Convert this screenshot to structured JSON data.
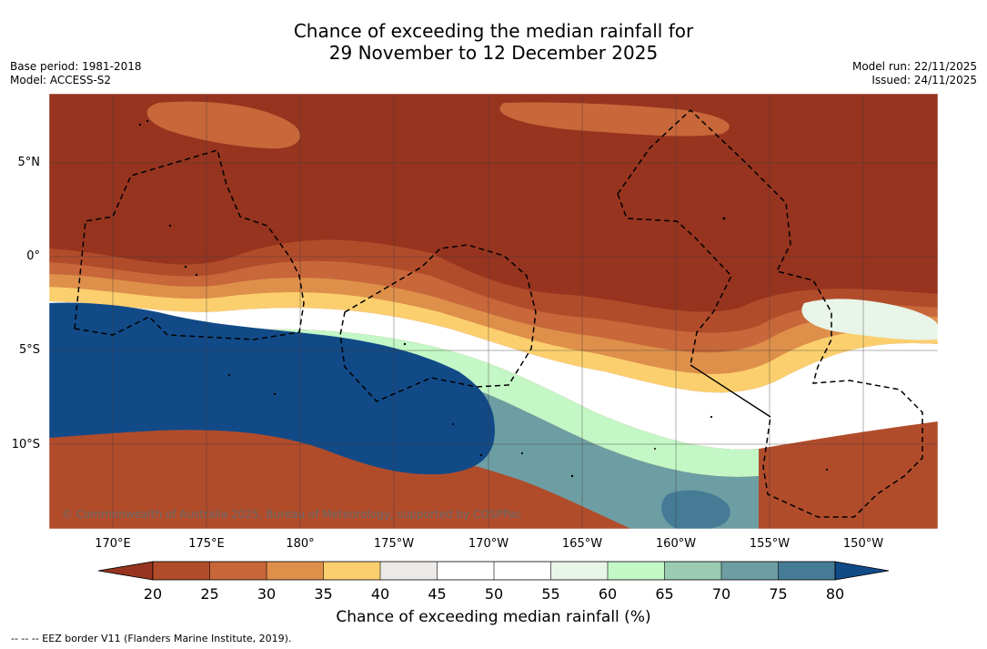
{
  "title": {
    "line1": "Chance of exceeding the median rainfall for",
    "line2": "29 November to 12 December 2025"
  },
  "meta": {
    "base_period": "Base period: 1981-2018",
    "model": "Model: ACCESS-S2",
    "model_run": "Model run: 22/11/2025",
    "issued": "Issued: 24/11/2025"
  },
  "map": {
    "lon_labels": [
      "170°E",
      "175°E",
      "180°",
      "175°W",
      "170°W",
      "165°W",
      "160°W",
      "155°W",
      "150°W"
    ],
    "lat_labels": [
      "5°N",
      "0°",
      "5°S",
      "10°S"
    ],
    "copyright": "© Commonwealth of Australia 2025, Bureau of Meteorology, supported by COSPPac"
  },
  "colorbar": {
    "ticks": [
      "20",
      "25",
      "30",
      "35",
      "40",
      "45",
      "50",
      "55",
      "60",
      "65",
      "70",
      "75",
      "80"
    ],
    "colors": [
      "#96341f",
      "#b14c2b",
      "#c8673a",
      "#de904a",
      "#fccf6e",
      "#ece9e6",
      "#ffffff",
      "#ffffff",
      "#e8f5e8",
      "#c3f7c6",
      "#99ccb3",
      "#6d9ea3",
      "#467b96",
      "#124a88"
    ],
    "label": "Chance of exceeding median rainfall (%)"
  },
  "footer": {
    "legend_text": "--  --  -- EEZ border V11 (Flanders Marine Institute, 2019)."
  }
}
